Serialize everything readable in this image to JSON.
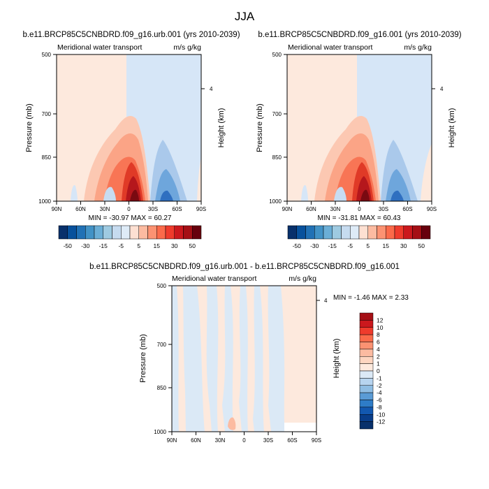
{
  "page": {
    "title": "JJA"
  },
  "chart_data": [
    {
      "type": "heatmap",
      "id": "urb",
      "title": "b.e11.BRCP85C5CNBDRD.f09_g16.urb.001 (yrs 2010-2039)",
      "left_string": "Meridional water transport",
      "right_string": "m/s g/kg",
      "xlabel": "",
      "ylabel": "Pressure (mb)",
      "y2label": "Height (km)",
      "x_ticks": [
        "90N",
        "60N",
        "30N",
        "0",
        "30S",
        "60S",
        "90S"
      ],
      "y_ticks": [
        "500",
        "700",
        "850",
        "1000"
      ],
      "y2_ticks": [
        "4"
      ],
      "min_max": "MIN = -30.97   MAX =  60.27",
      "colorbar": {
        "orientation": "horizontal",
        "labels": [
          "-50",
          "-30",
          "-15",
          "-5",
          "5",
          "15",
          "30",
          "50"
        ],
        "colors": [
          "#08306b",
          "#08519c",
          "#2171b5",
          "#4292c6",
          "#6baed6",
          "#9ecae1",
          "#c6dbef",
          "#deebf7",
          "#fde0d2",
          "#fcbba1",
          "#fc9272",
          "#fb6a4a",
          "#ef3b2c",
          "#cb181d",
          "#a50f15",
          "#67000d"
        ]
      },
      "features": [
        {
          "lat": 5,
          "p": 1000,
          "value": 60.27
        },
        {
          "lat": -20,
          "p": 980,
          "value": -30.97
        }
      ]
    },
    {
      "type": "heatmap",
      "id": "ctl",
      "title": "b.e11.BRCP85C5CNBDRD.f09_g16.001 (yrs 2010-2039)",
      "left_string": "Meridional water transport",
      "right_string": "m/s g/kg",
      "xlabel": "",
      "ylabel": "Pressure (mb)",
      "y2label": "Height (km)",
      "x_ticks": [
        "90N",
        "60N",
        "30N",
        "0",
        "30S",
        "60S",
        "90S"
      ],
      "y_ticks": [
        "500",
        "700",
        "850",
        "1000"
      ],
      "y2_ticks": [
        "4"
      ],
      "min_max": "MIN = -31.81   MAX =  60.43",
      "colorbar": {
        "orientation": "horizontal",
        "labels": [
          "-50",
          "-30",
          "-15",
          "-5",
          "5",
          "15",
          "30",
          "50"
        ],
        "colors": [
          "#08306b",
          "#08519c",
          "#2171b5",
          "#4292c6",
          "#6baed6",
          "#9ecae1",
          "#c6dbef",
          "#deebf7",
          "#fde0d2",
          "#fcbba1",
          "#fc9272",
          "#fb6a4a",
          "#ef3b2c",
          "#cb181d",
          "#a50f15",
          "#67000d"
        ]
      },
      "features": [
        {
          "lat": 5,
          "p": 1000,
          "value": 60.43
        },
        {
          "lat": -20,
          "p": 980,
          "value": -31.81
        }
      ]
    },
    {
      "type": "heatmap",
      "id": "diff",
      "title": "b.e11.BRCP85C5CNBDRD.f09_g16.urb.001 - b.e11.BRCP85C5CNBDRD.f09_g16.001",
      "left_string": "Meridional water transport",
      "right_string": "m/s g/kg",
      "xlabel": "",
      "ylabel": "Pressure (mb)",
      "y2label": "Height (km)",
      "x_ticks": [
        "90N",
        "60N",
        "30N",
        "0",
        "30S",
        "60S",
        "90S"
      ],
      "y_ticks": [
        "500",
        "700",
        "850",
        "1000"
      ],
      "y2_ticks": [
        "4"
      ],
      "min_max": "MIN = -1.46   MAX =   2.33",
      "colorbar": {
        "orientation": "vertical",
        "labels": [
          "12",
          "10",
          "8",
          "6",
          "4",
          "2",
          "1",
          "0",
          "-1",
          "-2",
          "-4",
          "-6",
          "-8",
          "-10",
          "-12"
        ],
        "colors": [
          "#a50f15",
          "#cb181d",
          "#ef3b2c",
          "#fb6a4a",
          "#fc9272",
          "#fcbba1",
          "#fdd5c0",
          "#fde9dd",
          "#dbe9f6",
          "#b7d4ef",
          "#8fbde3",
          "#5a9bd5",
          "#2e7cc7",
          "#1258b0",
          "#083d8a",
          "#08306b"
        ]
      },
      "features": [
        {
          "lat": 15,
          "p": 990,
          "value": 2.33
        },
        {
          "lat": -40,
          "p": 900,
          "value": -1.46
        }
      ]
    }
  ]
}
